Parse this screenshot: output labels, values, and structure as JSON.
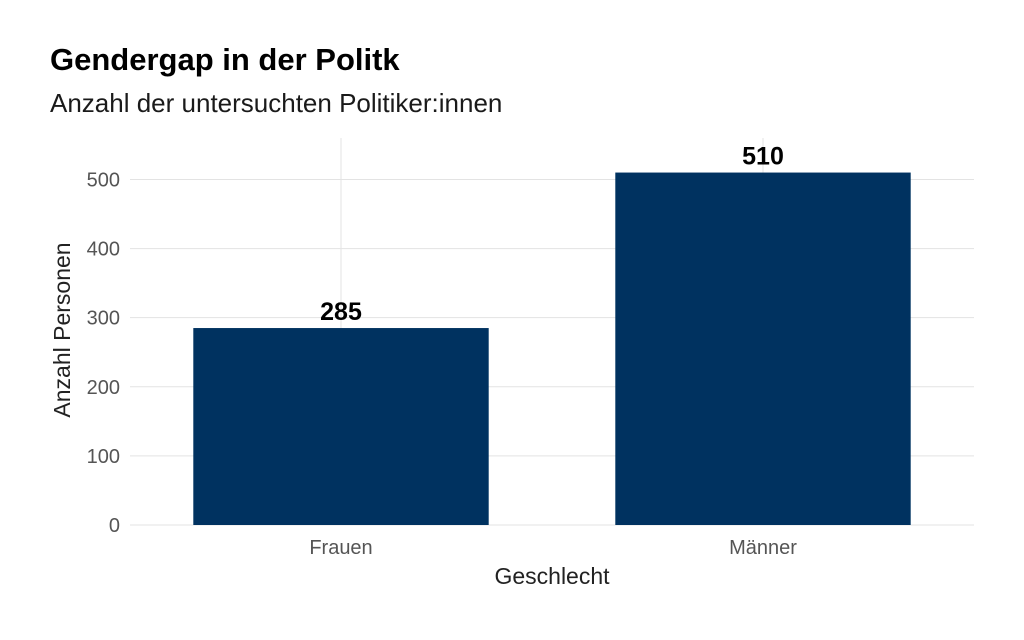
{
  "chart_data": {
    "type": "bar",
    "title": "Gendergap in der Politk",
    "subtitle": "Anzahl der untersuchten Politiker:innen",
    "xlabel": "Geschlecht",
    "ylabel": "Anzahl Personen",
    "categories": [
      "Frauen",
      "Männer"
    ],
    "values": [
      285,
      510
    ],
    "data_labels": [
      "285",
      "510"
    ],
    "ylim": [
      0,
      560
    ],
    "yticks": [
      0,
      100,
      200,
      300,
      400,
      500
    ],
    "grid": true,
    "legend": "none",
    "bar_color": "#003260"
  }
}
